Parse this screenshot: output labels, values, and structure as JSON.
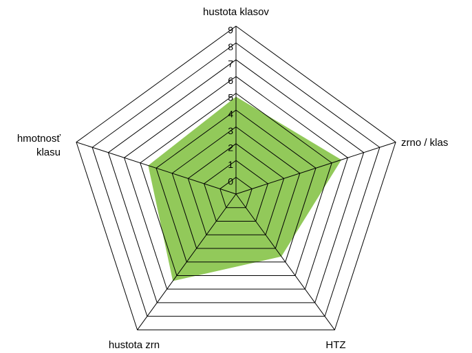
{
  "chart_data": {
    "type": "radar",
    "categories": [
      "hustota klasov",
      "zrno / klas",
      "HTZ",
      "hustota zrn",
      "hmotnosť klasu"
    ],
    "values": [
      4.8,
      5.6,
      3.6,
      5.4,
      4.5
    ],
    "color": "#92c95a",
    "ylim": [
      -1,
      9
    ],
    "yticks": [
      0,
      1,
      2,
      3,
      4,
      5,
      6,
      7,
      8,
      9
    ],
    "grid": true
  }
}
